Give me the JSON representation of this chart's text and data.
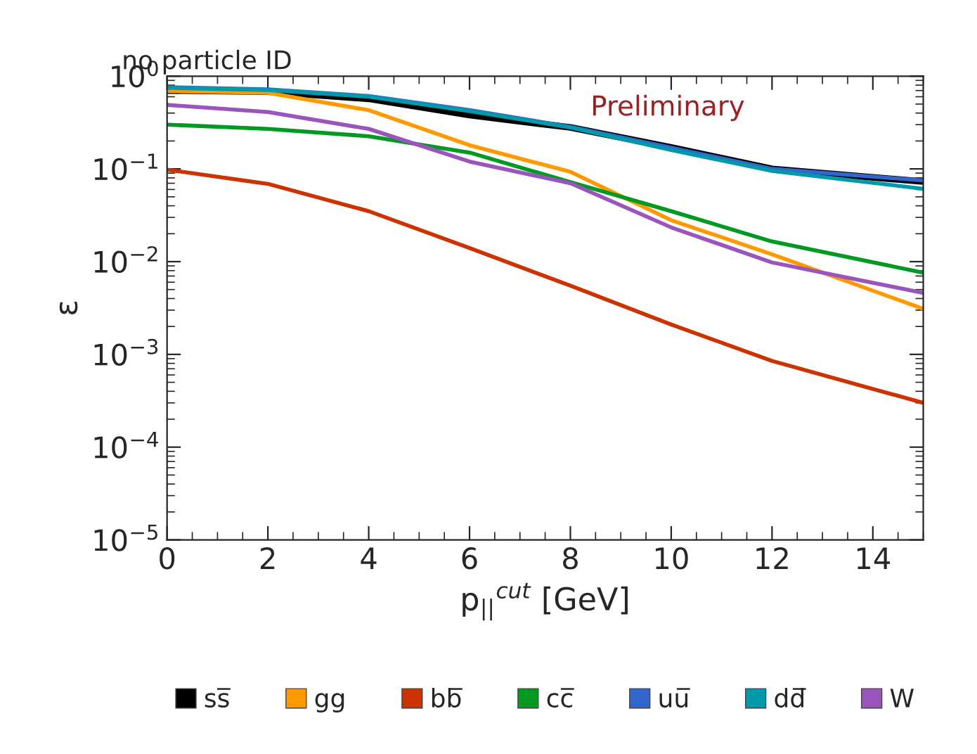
{
  "chart_data": {
    "type": "line",
    "title": "no particle ID",
    "xlabel": "p$_{||}$$^{cut}$ [GeV]",
    "ylabel": "ε",
    "annotations": [
      "Preliminary"
    ],
    "log": "y",
    "grid": false,
    "legend": "bottom",
    "marker": "none",
    "line_style": "solid",
    "xlim": [
      0,
      15
    ],
    "xticks": [
      0,
      2,
      4,
      6,
      8,
      10,
      12,
      14
    ],
    "ylim": [
      1e-05,
      1
    ],
    "yticks": [
      {
        "value": 1e-05,
        "label": "10$^{−5}$"
      },
      {
        "value": 0.0001,
        "label": "10$^{−4}$"
      },
      {
        "value": 0.001,
        "label": "10$^{−3}$"
      },
      {
        "value": 0.01,
        "label": "10$^{−2}$"
      },
      {
        "value": 0.1,
        "label": "10$^{−1}$"
      },
      {
        "value": 1,
        "label": "10$^{0}$"
      }
    ],
    "x": [
      0,
      2,
      4,
      6,
      8,
      10,
      12,
      15
    ],
    "series": [
      {
        "name": "ss̅",
        "color": "#000000",
        "values": [
          0.7,
          0.68,
          0.57,
          0.38,
          0.28,
          0.17,
          0.1,
          0.073
        ]
      },
      {
        "name": "gg",
        "color": "#ff9900",
        "values": [
          0.69,
          0.66,
          0.43,
          0.18,
          0.093,
          0.028,
          0.012,
          0.0031
        ]
      },
      {
        "name": "bb̅",
        "color": "#cc3300",
        "values": [
          0.098,
          0.069,
          0.035,
          0.014,
          0.0055,
          0.0021,
          0.00085,
          0.0003
        ]
      },
      {
        "name": "cc̅",
        "color": "#009922",
        "values": [
          0.3,
          0.27,
          0.225,
          0.15,
          0.072,
          0.035,
          0.0165,
          0.0076
        ]
      },
      {
        "name": "uu̅",
        "color": "#3366cc",
        "values": [
          0.76,
          0.72,
          0.61,
          0.43,
          0.285,
          0.169,
          0.1,
          0.075
        ]
      },
      {
        "name": "dd̅",
        "color": "#0099aa",
        "values": [
          0.75,
          0.71,
          0.6,
          0.42,
          0.28,
          0.16,
          0.095,
          0.061
        ]
      },
      {
        "name": "W",
        "color": "#9955bb",
        "values": [
          0.49,
          0.41,
          0.27,
          0.12,
          0.07,
          0.0234,
          0.0098,
          0.0046
        ]
      }
    ]
  }
}
